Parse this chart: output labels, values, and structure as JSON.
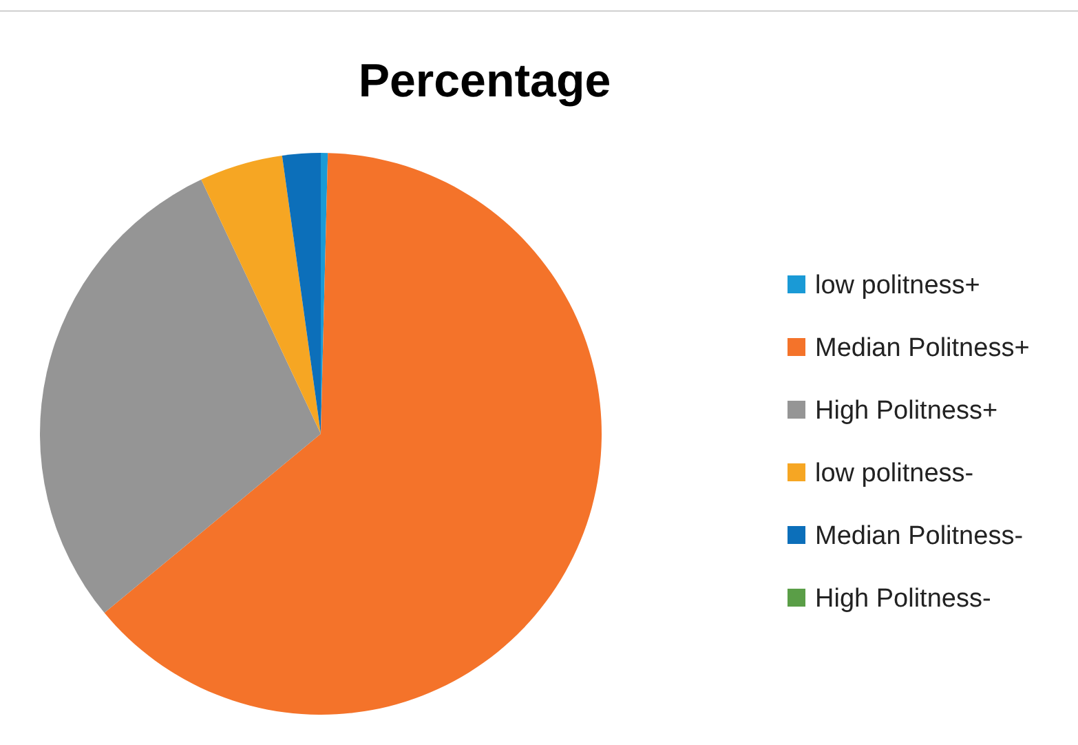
{
  "chart_data": {
    "type": "pie",
    "title": "Percentage",
    "categories": [
      "low politness+",
      "Median Politness+",
      "High Politness+",
      "low politness-",
      "Median Politness-",
      "High Politness-"
    ],
    "values": [
      0.4,
      63.6,
      29.0,
      4.8,
      2.2,
      0
    ],
    "colors": [
      "#1a9ad6",
      "#f4732a",
      "#959595",
      "#f6a623",
      "#0c6fba",
      "#5a9e47"
    ],
    "legend": "right"
  }
}
